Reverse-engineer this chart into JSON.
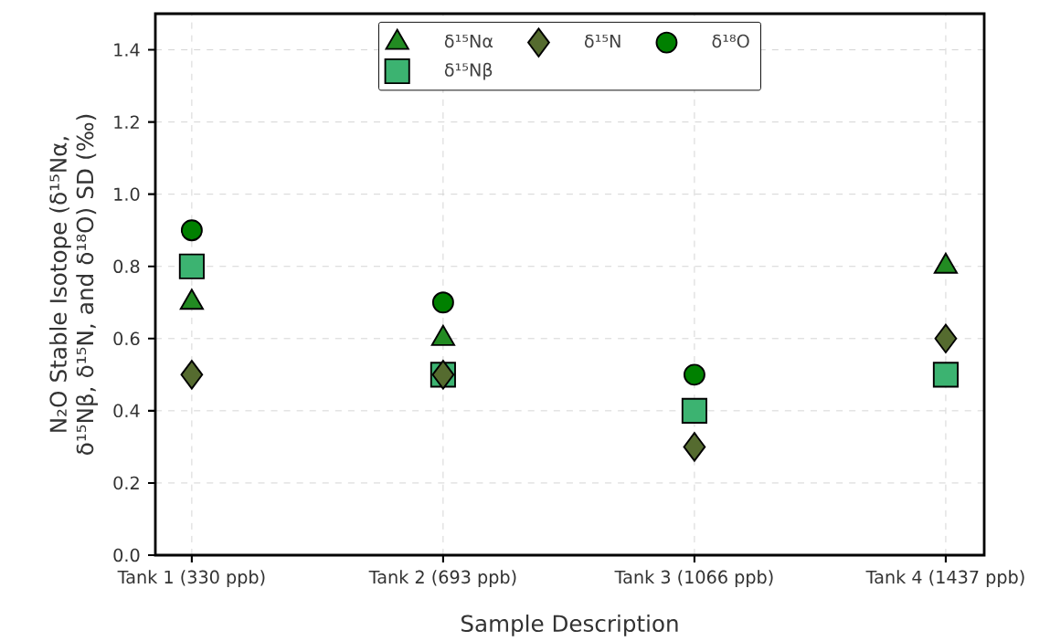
{
  "chart_data": {
    "type": "scatter",
    "xlabel": "Sample Description",
    "ylabel": "N₂O Stable Isotope (δ¹⁵Nα, δ¹⁵Nβ, δ¹⁵N, and δ¹⁸O) SD (‰)",
    "categories": [
      "Tank 1 (330 ppb)",
      "Tank 2 (693 ppb)",
      "Tank 3 (1066 ppb)",
      "Tank 4 (1437 ppb)"
    ],
    "series": [
      {
        "name": "δ¹⁵Nα",
        "color": "#228b22",
        "marker": "triangle",
        "values": [
          0.7,
          0.6,
          null,
          0.8
        ]
      },
      {
        "name": "δ¹⁵Nβ",
        "color": "#3cb371",
        "marker": "square",
        "values": [
          0.8,
          0.5,
          0.4,
          0.5
        ]
      },
      {
        "name": "δ¹⁵N",
        "color": "#556b2f",
        "marker": "diamond",
        "values": [
          0.5,
          0.5,
          0.3,
          0.6
        ]
      },
      {
        "name": "δ¹⁸O",
        "color": "#008000",
        "marker": "circle",
        "values": [
          0.9,
          0.7,
          0.5,
          null
        ]
      }
    ],
    "ylim": [
      0,
      1.5
    ],
    "yticks": [
      {
        "value": 0,
        "label": "0.0"
      },
      {
        "value": 0.2,
        "label": "0.2"
      },
      {
        "value": 0.4,
        "label": "0.4"
      },
      {
        "value": 0.6,
        "label": "0.6"
      },
      {
        "value": 0.8,
        "label": "0.8"
      },
      {
        "value": 1.0,
        "label": "1.0"
      },
      {
        "value": 1.2,
        "label": "1.2"
      },
      {
        "value": 1.4,
        "label": "1.4"
      }
    ],
    "grid": true,
    "legend": "top"
  }
}
